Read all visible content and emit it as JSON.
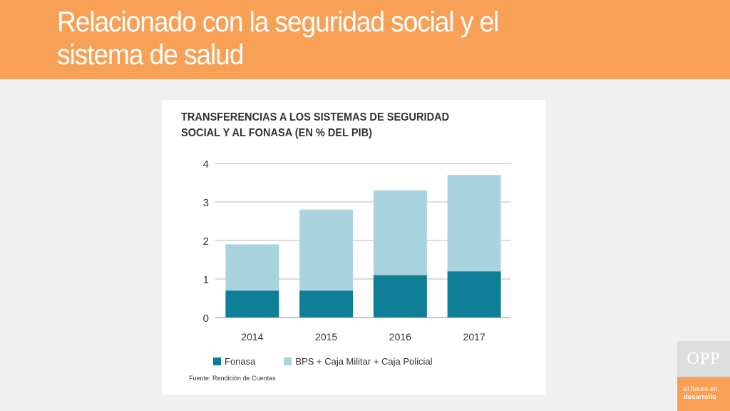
{
  "slide": {
    "title_line1": "Relacionado con la seguridad social y el",
    "title_line2": "sistema de salud",
    "header_color": "#f7a056"
  },
  "chart_data": {
    "type": "bar",
    "stacked": true,
    "title_line1": "TRANSFERENCIAS A LOS SISTEMAS DE SEGURIDAD",
    "title_line2": "SOCIAL Y AL FONASA (EN % DEL PIB)",
    "categories": [
      "2014",
      "2015",
      "2016",
      "2017"
    ],
    "series": [
      {
        "name": "Fonasa",
        "color": "#0e7f97",
        "values": [
          0.7,
          0.7,
          1.1,
          1.2
        ]
      },
      {
        "name": "BPS + Caja Militar + Caja Policial",
        "color": "#a9d4df",
        "values": [
          1.2,
          2.1,
          2.2,
          2.5
        ]
      }
    ],
    "ylim": [
      0,
      4
    ],
    "yticks": [
      "0",
      "1",
      "2",
      "3",
      "4"
    ],
    "grid": true,
    "legend_position": "bottom",
    "source": "Fuente: Rendición de Cuentas"
  },
  "brand": {
    "logo_text": "OPP",
    "tagline_line1": "el futuro en",
    "tagline_line2": "desarrollo"
  }
}
